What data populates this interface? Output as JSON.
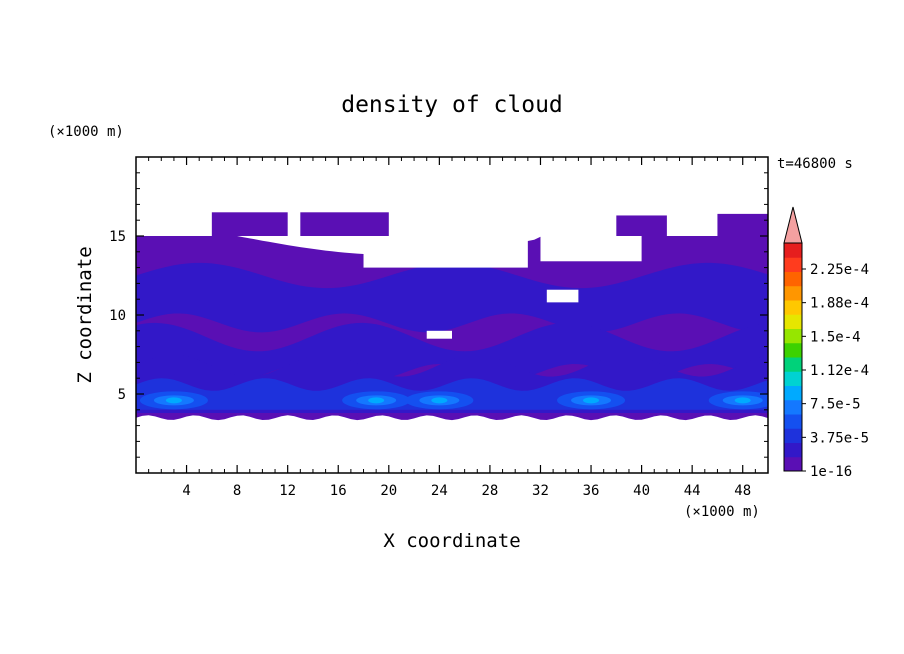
{
  "chart_data": {
    "type": "heatmap",
    "title": "density of cloud",
    "xlabel": "X coordinate",
    "ylabel": "Z coordinate",
    "x_unit": "(×1000 m)",
    "y_unit": "(×1000 m)",
    "time_label": "t=46800 s",
    "xlim": [
      0,
      50
    ],
    "ylim": [
      0,
      20
    ],
    "x_ticks": [
      "4",
      "8",
      "12",
      "16",
      "20",
      "24",
      "28",
      "32",
      "36",
      "40",
      "44",
      "48"
    ],
    "y_ticks": [
      "5",
      "10",
      "15"
    ],
    "colorbar_labels": [
      "2.25e-4",
      "1.88e-4",
      "1.5e-4",
      "1.12e-4",
      "7.5e-5",
      "3.75e-5",
      "1e-16"
    ],
    "colorbar_colors": [
      "#5a0fb4",
      "#3218c8",
      "#1e32dc",
      "#1450f0",
      "#1478ff",
      "#00aaff",
      "#00d2d2",
      "#00d27a",
      "#3cd200",
      "#96e600",
      "#e6e600",
      "#ffc800",
      "#ff9600",
      "#ff6400",
      "#ff3c1e",
      "#e61e1e"
    ],
    "cloud_layer": {
      "base_km": 3.5,
      "top_km": 16.5,
      "deck_top_km": 15.0,
      "core_height_km": 4.6,
      "core_centers_x_km": [
        3,
        19,
        24,
        36,
        48
      ],
      "color_background": "#5a0fb4"
    },
    "grid": false
  }
}
